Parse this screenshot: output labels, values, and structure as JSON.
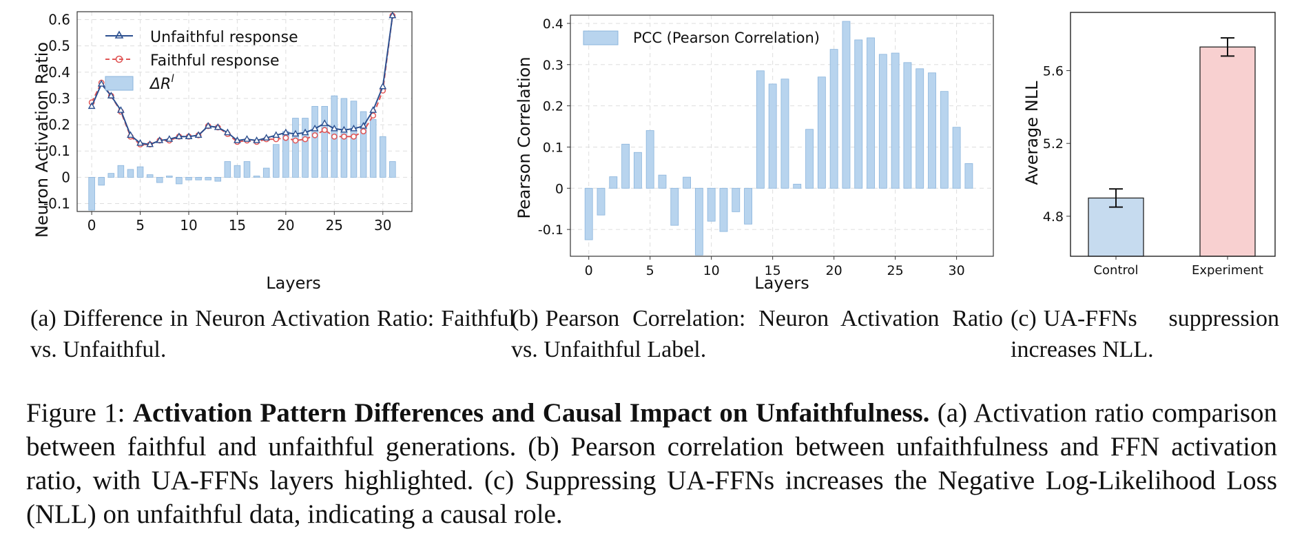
{
  "panel_a": {
    "ylabel": "Neuron Activation Ratio",
    "xlabel": "Layers",
    "yticks": [
      "-0.1",
      "0",
      "0.1",
      "0.2",
      "0.3",
      "0.4",
      "0.5",
      "0.6"
    ],
    "xticks": [
      "0",
      "5",
      "10",
      "15",
      "20",
      "25",
      "30"
    ],
    "legend": {
      "unfaithful": "Unfaithful response",
      "faithful": "Faithful response",
      "delta": "ΔR",
      "delta_sup": "l"
    }
  },
  "panel_b": {
    "ylabel": "Pearson Correlation",
    "xlabel": "Layers",
    "yticks": [
      "-0.1",
      "0",
      "0.1",
      "0.2",
      "0.3",
      "0.4"
    ],
    "xticks": [
      "0",
      "5",
      "10",
      "15",
      "20",
      "25",
      "30"
    ],
    "legend": "PCC (Pearson Correlation)"
  },
  "panel_c": {
    "ylabel": "Average NLL",
    "yticks": [
      "4.8",
      "5.2",
      "5.6"
    ],
    "categories": [
      "Control",
      "Experiment"
    ]
  },
  "chart_data": [
    {
      "type": "line",
      "xlabel": "Layers",
      "ylabel": "Neuron Activation Ratio",
      "ylim": [
        -0.13,
        0.63
      ],
      "xlim": [
        -1.5,
        33
      ],
      "x": [
        0,
        1,
        2,
        3,
        4,
        5,
        6,
        7,
        8,
        9,
        10,
        11,
        12,
        13,
        14,
        15,
        16,
        17,
        18,
        19,
        20,
        21,
        22,
        23,
        24,
        25,
        26,
        27,
        28,
        29,
        30,
        31
      ],
      "series": [
        {
          "name": "Unfaithful response",
          "color": "#2b4f8f",
          "values": [
            0.27,
            0.355,
            0.31,
            0.255,
            0.16,
            0.13,
            0.125,
            0.14,
            0.145,
            0.155,
            0.155,
            0.16,
            0.195,
            0.19,
            0.17,
            0.14,
            0.145,
            0.14,
            0.15,
            0.16,
            0.17,
            0.165,
            0.17,
            0.185,
            0.205,
            0.185,
            0.18,
            0.185,
            0.195,
            0.255,
            0.345,
            0.615
          ]
        },
        {
          "name": "Faithful response",
          "color": "#e05555",
          "values": [
            0.285,
            0.36,
            0.31,
            0.25,
            0.155,
            0.125,
            0.125,
            0.14,
            0.14,
            0.155,
            0.155,
            0.16,
            0.195,
            0.19,
            0.165,
            0.135,
            0.14,
            0.135,
            0.145,
            0.145,
            0.15,
            0.14,
            0.145,
            0.16,
            0.18,
            0.155,
            0.155,
            0.155,
            0.175,
            0.235,
            0.33,
            0.615
          ]
        },
        {
          "name": "ΔR^l",
          "color": "#b8d4ee",
          "values": [
            -0.125,
            -0.03,
            0.015,
            0.045,
            0.03,
            0.04,
            0.01,
            -0.02,
            0.005,
            -0.025,
            -0.01,
            -0.01,
            -0.01,
            -0.015,
            0.06,
            0.045,
            0.06,
            0.005,
            0.035,
            0.125,
            0.175,
            0.225,
            0.225,
            0.27,
            0.27,
            0.31,
            0.3,
            0.29,
            0.25,
            0.22,
            0.155,
            0.06
          ]
        }
      ]
    },
    {
      "type": "bar",
      "xlabel": "Layers",
      "ylabel": "Pearson Correlation",
      "ylim": [
        -0.165,
        0.42
      ],
      "xlim": [
        -1.5,
        33
      ],
      "x": [
        0,
        1,
        2,
        3,
        4,
        5,
        6,
        7,
        8,
        9,
        10,
        11,
        12,
        13,
        14,
        15,
        16,
        17,
        18,
        19,
        20,
        21,
        22,
        23,
        24,
        25,
        26,
        27,
        28,
        29,
        30,
        31
      ],
      "series": [
        {
          "name": "PCC (Pearson Correlation)",
          "color": "#b8d4ee",
          "values": [
            -0.125,
            -0.065,
            0.028,
            0.107,
            0.087,
            0.14,
            0.032,
            -0.09,
            0.027,
            -0.162,
            -0.08,
            -0.105,
            -0.057,
            -0.087,
            0.285,
            0.253,
            0.265,
            0.01,
            0.143,
            0.27,
            0.337,
            0.405,
            0.36,
            0.365,
            0.325,
            0.328,
            0.305,
            0.29,
            0.28,
            0.235,
            0.148,
            0.06
          ]
        }
      ]
    },
    {
      "type": "bar",
      "ylabel": "Average NLL",
      "ylim": [
        4.58,
        5.92
      ],
      "categories": [
        "Control",
        "Experiment"
      ],
      "values": [
        4.9,
        5.73
      ],
      "errors": [
        0.05,
        0.05
      ],
      "colors": [
        "#c6dbef",
        "#f8d0d0"
      ]
    }
  ],
  "captions": {
    "a_label": "(a)",
    "a_text": "Difference in Neuron Activation Ratio: Faithful vs. Unfaithful.",
    "b_label": "(b)",
    "b_text": "Pearson Correlation: Neuron Activation Ratio vs. Unfaithful Label.",
    "c_label": "(c)",
    "c_text": "UA-FFNs suppression increases NLL.",
    "fig_label": "Figure 1:",
    "fig_bold": "Activation Pattern Differences and Causal Impact on Unfaithfulness.",
    "fig_text": "(a) Activation ratio comparison between faithful and unfaithful generations. (b) Pearson correlation between unfaithfulness and FFN activation ratio, with UA-FFNs layers highlighted. (c) Suppressing UA-FFNs increases the Negative Log-Likelihood Loss (NLL) on unfaithful data, indicating a causal role."
  }
}
